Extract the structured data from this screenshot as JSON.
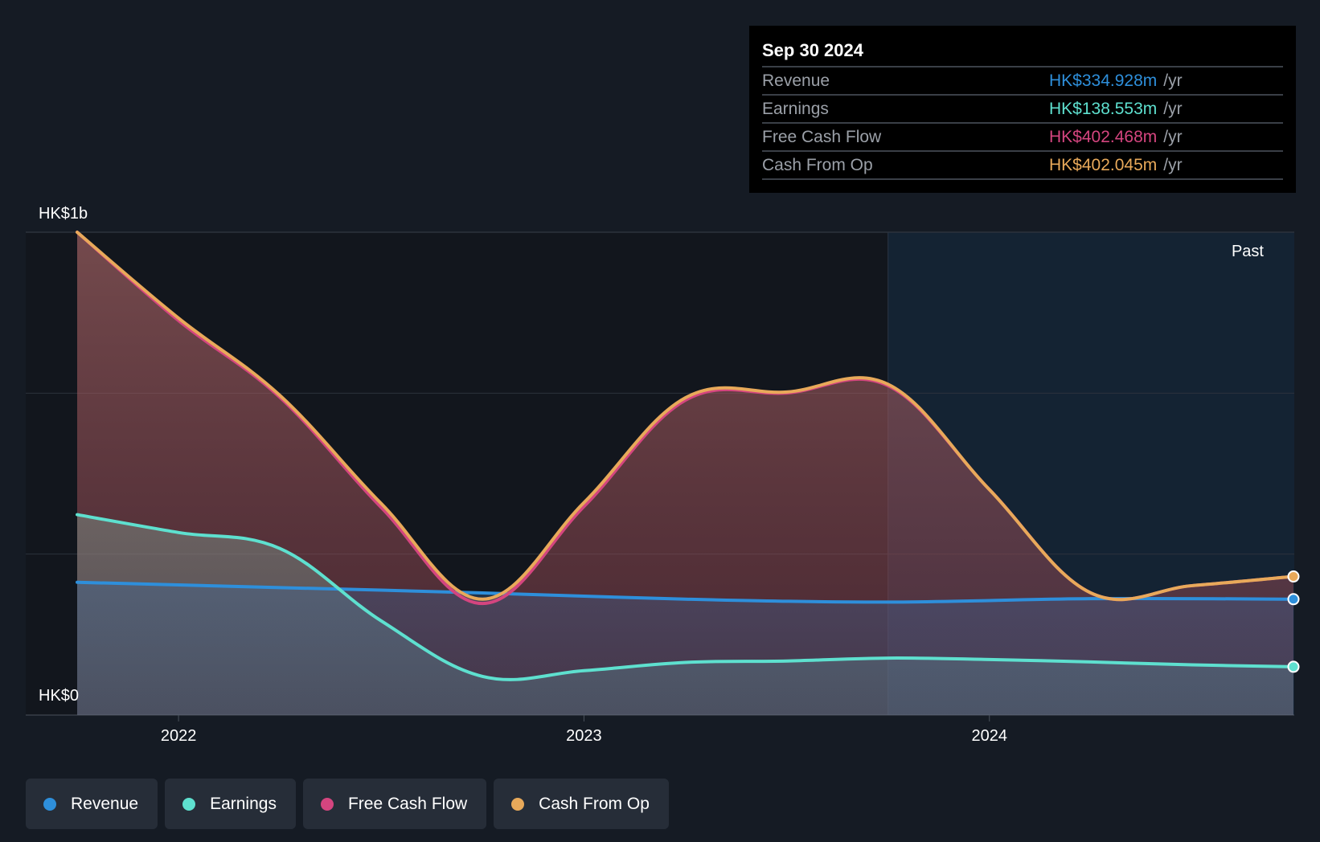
{
  "tooltip": {
    "date": "Sep 30 2024",
    "rows": [
      {
        "label": "Revenue",
        "value": "HK$334.928m",
        "unit": "/yr",
        "color": "#2e8fdb"
      },
      {
        "label": "Earnings",
        "value": "HK$138.553m",
        "unit": "/yr",
        "color": "#5ee0cf"
      },
      {
        "label": "Free Cash Flow",
        "value": "HK$402.468m",
        "unit": "/yr",
        "color": "#d4457f"
      },
      {
        "label": "Cash From Op",
        "value": "HK$402.045m",
        "unit": "/yr",
        "color": "#e8a95a"
      }
    ]
  },
  "legend": [
    {
      "label": "Revenue",
      "color": "#2e8fdb"
    },
    {
      "label": "Earnings",
      "color": "#5ee0cf"
    },
    {
      "label": "Free Cash Flow",
      "color": "#d4457f"
    },
    {
      "label": "Cash From Op",
      "color": "#e8a95a"
    }
  ],
  "chart_data": {
    "type": "area",
    "y_labels": {
      "top": "HK$1b",
      "bottom": "HK$0"
    },
    "ylim": [
      0,
      1000
    ],
    "xlim": [
      2021.75,
      2024.75
    ],
    "x_ticks": [
      {
        "value": 2022.0,
        "label": "2022"
      },
      {
        "value": 2023.0,
        "label": "2023"
      },
      {
        "value": 2024.0,
        "label": "2024"
      }
    ],
    "past_label": "Past",
    "past_start": 2023.75,
    "grid": true,
    "series": [
      {
        "name": "Revenue",
        "color": "#2e8fdb",
        "x": [
          2021.75,
          2022.25,
          2022.75,
          2023.25,
          2023.75,
          2024.25,
          2024.75
        ],
        "values": [
          275,
          264,
          253,
          240,
          234,
          241,
          240
        ]
      },
      {
        "name": "Earnings",
        "color": "#5ee0cf",
        "x": [
          2021.75,
          2022.0,
          2022.25,
          2022.5,
          2022.75,
          2023.0,
          2023.25,
          2023.5,
          2023.75,
          2024.0,
          2024.25,
          2024.5,
          2024.75
        ],
        "values": [
          415,
          378,
          345,
          195,
          80,
          92,
          109,
          112,
          118,
          115,
          110,
          104,
          100
        ]
      },
      {
        "name": "Free Cash Flow",
        "color": "#d4457f",
        "x": [
          2021.75,
          2022.0,
          2022.25,
          2022.5,
          2022.75,
          2023.0,
          2023.25,
          2023.5,
          2023.75,
          2024.0,
          2024.25,
          2024.5,
          2024.75
        ],
        "values": [
          1000,
          817,
          658,
          430,
          231,
          432,
          652,
          667,
          682,
          467,
          253,
          268,
          287
        ]
      },
      {
        "name": "Cash From Op",
        "color": "#e8a95a",
        "x": [
          2021.75,
          2022.0,
          2022.25,
          2022.5,
          2022.75,
          2023.0,
          2023.25,
          2023.5,
          2023.75,
          2024.0,
          2024.25,
          2024.5,
          2024.75
        ],
        "values": [
          1000,
          822,
          662,
          438,
          240,
          440,
          657,
          669,
          685,
          467,
          253,
          268,
          287
        ]
      }
    ]
  }
}
